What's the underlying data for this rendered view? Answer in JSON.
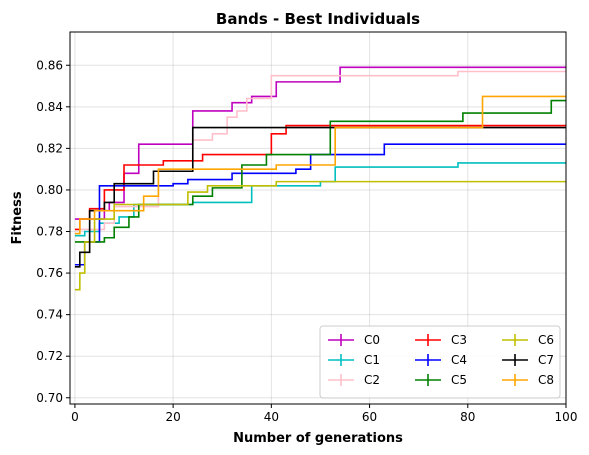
{
  "chart_data": {
    "type": "line",
    "title": "Bands - Best Individuals",
    "xlabel": "Number of generations",
    "ylabel": "Fitness",
    "xlim": [
      -1,
      100
    ],
    "ylim": [
      0.697,
      0.876
    ],
    "xticks": [
      0,
      20,
      40,
      60,
      80,
      100
    ],
    "yticks": [
      0.7,
      0.72,
      0.74,
      0.76,
      0.78,
      0.8,
      0.82,
      0.84,
      0.86
    ],
    "xtick_labels": [
      "0",
      "20",
      "40",
      "60",
      "80",
      "100"
    ],
    "ytick_labels": [
      "0.70",
      "0.72",
      "0.74",
      "0.76",
      "0.78",
      "0.80",
      "0.82",
      "0.84",
      "0.86"
    ],
    "grid": true,
    "legend": {
      "placement": "lower-right",
      "columns": 3
    },
    "series": [
      {
        "name": "C0",
        "color": "#bf00bf",
        "points": [
          [
            0,
            0.786
          ],
          [
            6,
            0.786
          ],
          [
            6,
            0.79
          ],
          [
            7,
            0.79
          ],
          [
            7,
            0.794
          ],
          [
            10,
            0.794
          ],
          [
            10,
            0.808
          ],
          [
            13,
            0.808
          ],
          [
            13,
            0.822
          ],
          [
            24,
            0.822
          ],
          [
            24,
            0.838
          ],
          [
            32,
            0.838
          ],
          [
            32,
            0.842
          ],
          [
            36,
            0.842
          ],
          [
            36,
            0.845
          ],
          [
            41,
            0.845
          ],
          [
            41,
            0.852
          ],
          [
            54,
            0.852
          ],
          [
            54,
            0.859
          ],
          [
            100,
            0.859
          ]
        ]
      },
      {
        "name": "C1",
        "color": "#00bfbf",
        "points": [
          [
            0,
            0.778
          ],
          [
            2,
            0.778
          ],
          [
            2,
            0.78
          ],
          [
            5,
            0.78
          ],
          [
            5,
            0.784
          ],
          [
            9,
            0.784
          ],
          [
            9,
            0.787
          ],
          [
            12,
            0.787
          ],
          [
            12,
            0.793
          ],
          [
            24,
            0.793
          ],
          [
            24,
            0.794
          ],
          [
            36,
            0.794
          ],
          [
            36,
            0.802
          ],
          [
            50,
            0.802
          ],
          [
            50,
            0.804
          ],
          [
            53,
            0.804
          ],
          [
            53,
            0.811
          ],
          [
            78,
            0.811
          ],
          [
            78,
            0.813
          ],
          [
            100,
            0.813
          ]
        ]
      },
      {
        "name": "C2",
        "color": "#ffc0cb",
        "points": [
          [
            0,
            0.781
          ],
          [
            6,
            0.781
          ],
          [
            6,
            0.784
          ],
          [
            8,
            0.784
          ],
          [
            8,
            0.792
          ],
          [
            17,
            0.792
          ],
          [
            17,
            0.809
          ],
          [
            24,
            0.809
          ],
          [
            24,
            0.824
          ],
          [
            28,
            0.824
          ],
          [
            28,
            0.827
          ],
          [
            31,
            0.827
          ],
          [
            31,
            0.835
          ],
          [
            33,
            0.835
          ],
          [
            33,
            0.838
          ],
          [
            35,
            0.838
          ],
          [
            35,
            0.844
          ],
          [
            40,
            0.844
          ],
          [
            40,
            0.855
          ],
          [
            78,
            0.855
          ],
          [
            78,
            0.857
          ],
          [
            100,
            0.857
          ]
        ]
      },
      {
        "name": "C3",
        "color": "#ff0000",
        "points": [
          [
            0,
            0.781
          ],
          [
            1,
            0.781
          ],
          [
            1,
            0.786
          ],
          [
            3,
            0.786
          ],
          [
            3,
            0.791
          ],
          [
            6,
            0.791
          ],
          [
            6,
            0.8
          ],
          [
            10,
            0.8
          ],
          [
            10,
            0.812
          ],
          [
            18,
            0.812
          ],
          [
            18,
            0.814
          ],
          [
            26,
            0.814
          ],
          [
            26,
            0.817
          ],
          [
            40,
            0.817
          ],
          [
            40,
            0.827
          ],
          [
            43,
            0.827
          ],
          [
            43,
            0.831
          ],
          [
            100,
            0.831
          ]
        ]
      },
      {
        "name": "C4",
        "color": "#0000ff",
        "points": [
          [
            0,
            0.764
          ],
          [
            2,
            0.764
          ],
          [
            2,
            0.775
          ],
          [
            5,
            0.775
          ],
          [
            5,
            0.802
          ],
          [
            20,
            0.802
          ],
          [
            20,
            0.803
          ],
          [
            23,
            0.803
          ],
          [
            23,
            0.805
          ],
          [
            32,
            0.805
          ],
          [
            32,
            0.808
          ],
          [
            45,
            0.808
          ],
          [
            45,
            0.81
          ],
          [
            48,
            0.81
          ],
          [
            48,
            0.817
          ],
          [
            63,
            0.817
          ],
          [
            63,
            0.822
          ],
          [
            100,
            0.822
          ]
        ]
      },
      {
        "name": "C5",
        "color": "#008000",
        "points": [
          [
            0,
            0.775
          ],
          [
            6,
            0.775
          ],
          [
            6,
            0.777
          ],
          [
            8,
            0.777
          ],
          [
            8,
            0.782
          ],
          [
            11,
            0.782
          ],
          [
            11,
            0.787
          ],
          [
            13,
            0.787
          ],
          [
            13,
            0.793
          ],
          [
            24,
            0.793
          ],
          [
            24,
            0.797
          ],
          [
            28,
            0.797
          ],
          [
            28,
            0.801
          ],
          [
            34,
            0.801
          ],
          [
            34,
            0.812
          ],
          [
            39,
            0.812
          ],
          [
            39,
            0.817
          ],
          [
            52,
            0.817
          ],
          [
            52,
            0.833
          ],
          [
            79,
            0.833
          ],
          [
            79,
            0.837
          ],
          [
            97,
            0.837
          ],
          [
            97,
            0.843
          ],
          [
            100,
            0.843
          ]
        ]
      },
      {
        "name": "C6",
        "color": "#bfbf00",
        "points": [
          [
            0,
            0.752
          ],
          [
            1,
            0.752
          ],
          [
            1,
            0.76
          ],
          [
            2,
            0.76
          ],
          [
            2,
            0.775
          ],
          [
            4,
            0.775
          ],
          [
            4,
            0.786
          ],
          [
            8,
            0.786
          ],
          [
            8,
            0.793
          ],
          [
            23,
            0.793
          ],
          [
            23,
            0.799
          ],
          [
            27,
            0.799
          ],
          [
            27,
            0.802
          ],
          [
            41,
            0.802
          ],
          [
            41,
            0.804
          ],
          [
            100,
            0.804
          ]
        ]
      },
      {
        "name": "C7",
        "color": "#000000",
        "points": [
          [
            0,
            0.763
          ],
          [
            1,
            0.763
          ],
          [
            1,
            0.77
          ],
          [
            3,
            0.77
          ],
          [
            3,
            0.79
          ],
          [
            6,
            0.79
          ],
          [
            6,
            0.794
          ],
          [
            8,
            0.794
          ],
          [
            8,
            0.803
          ],
          [
            16,
            0.803
          ],
          [
            16,
            0.809
          ],
          [
            24,
            0.809
          ],
          [
            24,
            0.83
          ],
          [
            100,
            0.83
          ]
        ]
      },
      {
        "name": "C8",
        "color": "#ffa500",
        "points": [
          [
            0,
            0.779
          ],
          [
            1,
            0.779
          ],
          [
            1,
            0.786
          ],
          [
            4,
            0.786
          ],
          [
            4,
            0.79
          ],
          [
            14,
            0.79
          ],
          [
            14,
            0.797
          ],
          [
            17,
            0.797
          ],
          [
            17,
            0.81
          ],
          [
            41,
            0.81
          ],
          [
            41,
            0.812
          ],
          [
            53,
            0.812
          ],
          [
            53,
            0.83
          ],
          [
            83,
            0.83
          ],
          [
            83,
            0.845
          ],
          [
            100,
            0.845
          ]
        ]
      }
    ]
  }
}
